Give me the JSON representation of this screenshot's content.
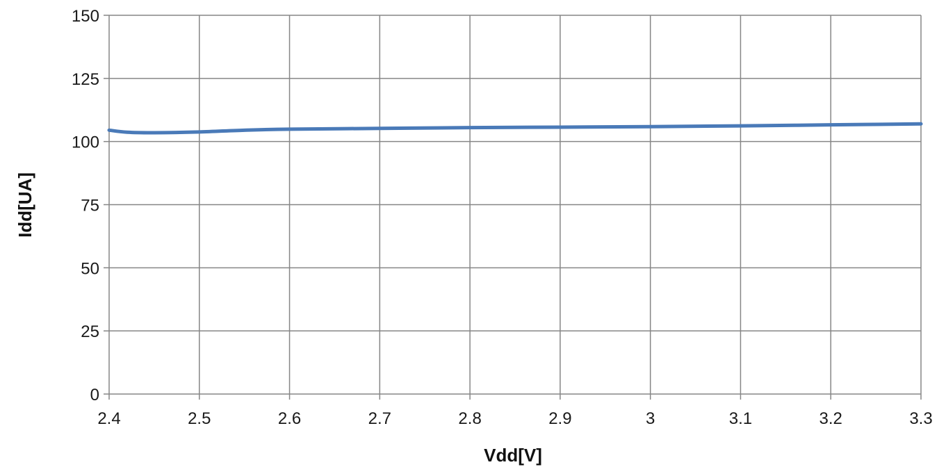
{
  "chart_data": {
    "type": "line",
    "title": "",
    "xlabel": "Vdd[V]",
    "ylabel": "Idd[UA]",
    "xlim": [
      2.4,
      3.3
    ],
    "ylim": [
      0,
      150
    ],
    "x_ticks": [
      "2.4",
      "2.5",
      "2.6",
      "2.7",
      "2.8",
      "2.9",
      "3",
      "3.1",
      "3.2",
      "3.3"
    ],
    "y_ticks": [
      "0",
      "25",
      "50",
      "75",
      "100",
      "125",
      "150"
    ],
    "grid": true,
    "legend": "none",
    "series": [
      {
        "color": "#4a7ab8",
        "x": [
          2.4,
          2.42,
          2.45,
          2.5,
          2.55,
          2.6,
          2.7,
          2.8,
          2.9,
          3.0,
          3.1,
          3.2,
          3.3
        ],
        "y": [
          104.5,
          103.7,
          103.5,
          103.8,
          104.5,
          104.9,
          105.2,
          105.5,
          105.7,
          105.9,
          106.2,
          106.6,
          107.0
        ]
      }
    ]
  }
}
